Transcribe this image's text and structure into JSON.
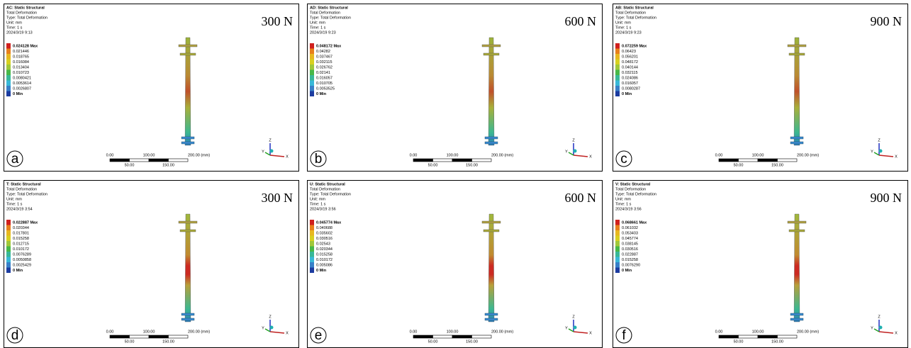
{
  "panels": [
    {
      "header": [
        "AC: Static Structural",
        "Total Deformation",
        "Type: Total Deformation",
        "Unit: mm",
        "Time: 1 s",
        "2024/3/19 9:13"
      ],
      "legend": [
        "0.024128 Max",
        "0.021446",
        "0.018765",
        "0.016084",
        "0.013404",
        "0.010723",
        "0.0080421",
        "0.0053614",
        "0.0026807",
        "0 Min"
      ],
      "load": "300 N",
      "label": "a",
      "scale": {
        "top": [
          "0.00",
          "100.00",
          "200.00 (mm)"
        ],
        "bottom": [
          "50.00",
          "150.00"
        ]
      },
      "axes": [
        "Z",
        "Y",
        "X"
      ]
    },
    {
      "header": [
        "AD: Static Structural",
        "Total Deformation",
        "Type: Total Deformation",
        "Unit: mm",
        "Time: 1 s",
        "2024/3/19 9:23"
      ],
      "legend": [
        "0.048172 Max",
        "0.04282",
        "0.037467",
        "0.032115",
        "0.026762",
        "0.02141",
        "0.016057",
        "0.010705",
        "0.0053525",
        "0 Min"
      ],
      "load": "600 N",
      "label": "b",
      "scale": {
        "top": [
          "0.00",
          "100.00",
          "200.00 (mm)"
        ],
        "bottom": [
          "50.00",
          "150.00"
        ]
      },
      "axes": [
        "Z",
        "Y",
        "X"
      ]
    },
    {
      "header": [
        "AB: Static Structural",
        "Total Deformation",
        "Type: Total Deformation",
        "Unit: mm",
        "Time: 1 s",
        "2024/3/19 9:23"
      ],
      "legend": [
        "0.072259 Max",
        "0.06423",
        "0.056201",
        "0.048172",
        "0.040144",
        "0.032115",
        "0.024086",
        "0.016057",
        "0.0080287",
        "0 Min"
      ],
      "load": "900 N",
      "label": "c",
      "scale": {
        "top": [
          "0.00",
          "100.00",
          "200.00 (mm)"
        ],
        "bottom": [
          "50.00",
          "150.00"
        ]
      },
      "axes": [
        "Z",
        "Y",
        "X"
      ]
    },
    {
      "header": [
        "T: Static Structural",
        "Total Deformation",
        "Type: Total Deformation",
        "Unit: mm",
        "Time: 1 s",
        "2024/3/19 3:54"
      ],
      "legend": [
        "0.022887 Max",
        "0.020344",
        "0.017801",
        "0.015258",
        "0.012715",
        "0.010172",
        "0.0076289",
        "0.0050858",
        "0.0025429",
        "0 Min"
      ],
      "load": "300 N",
      "label": "d",
      "scale": {
        "top": [
          "0.00",
          "100.00",
          "200.00 (mm)"
        ],
        "bottom": [
          "50.00",
          "150.00"
        ]
      },
      "axes": [
        "Z",
        "Y",
        "X"
      ]
    },
    {
      "header": [
        "U: Static Structural",
        "Total Deformation",
        "Type: Total Deformation",
        "Unit: mm",
        "Time: 1 s",
        "2024/3/19 3:56"
      ],
      "legend": [
        "0.045774 Max",
        "0.040688",
        "0.035602",
        "0.030516",
        "0.02543",
        "0.020344",
        "0.015258",
        "0.010172",
        "0.005086",
        "0 Min"
      ],
      "load": "600 N",
      "label": "e",
      "scale": {
        "top": [
          "0.00",
          "100.00",
          "200.00 (mm)"
        ],
        "bottom": [
          "50.00",
          "150.00"
        ]
      },
      "axes": [
        "Z",
        "Y",
        "X"
      ]
    },
    {
      "header": [
        "V: Static Structural",
        "Total Deformation",
        "Type: Total Deformation",
        "Unit: mm",
        "Time: 1 s",
        "2024/3/19 3:56"
      ],
      "legend": [
        "0.068661 Max",
        "0.061032",
        "0.053403",
        "0.045774",
        "0.038145",
        "0.030516",
        "0.022887",
        "0.015258",
        "0.0076290",
        "0 Min"
      ],
      "load": "900 N",
      "label": "f",
      "scale": {
        "top": [
          "0.00",
          "100.00",
          "200.00 (mm)"
        ],
        "bottom": [
          "50.00",
          "150.00"
        ]
      },
      "axes": [
        "Z",
        "Y",
        "X"
      ]
    }
  ]
}
